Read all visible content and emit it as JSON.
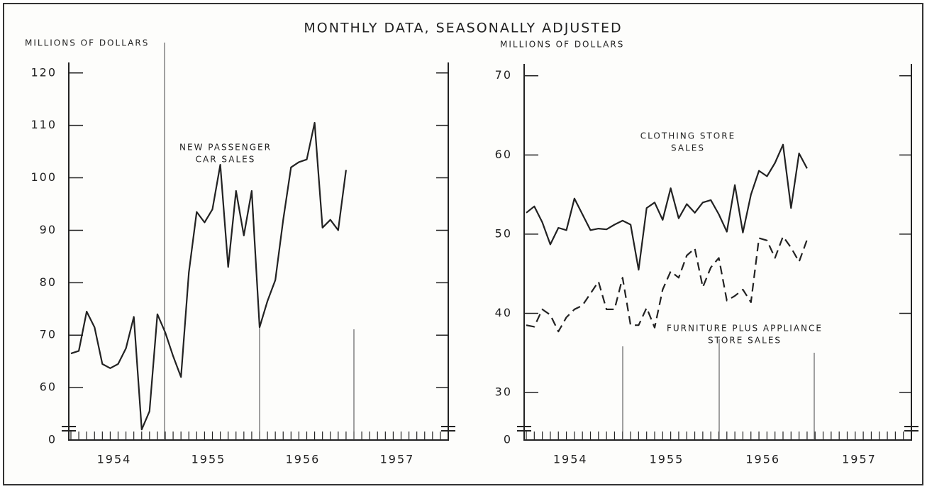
{
  "title": "MONTHLY DATA, SEASONALLY ADJUSTED",
  "chart_data": [
    {
      "type": "line",
      "y_label": "MILLIONS OF DOLLARS",
      "categories": [
        null,
        null,
        null,
        null,
        null,
        null,
        "1954",
        null,
        null,
        null,
        null,
        null,
        null,
        null,
        null,
        null,
        null,
        null,
        "1955",
        null,
        null,
        null,
        null,
        null,
        null,
        null,
        null,
        null,
        null,
        null,
        "1956",
        null,
        null,
        null,
        null,
        null,
        null,
        null,
        null,
        null,
        null,
        null,
        "1957",
        null,
        null,
        null,
        null,
        null
      ],
      "ylim": [
        0,
        122
      ],
      "axis_break": [
        0,
        50
      ],
      "yticks": [
        0,
        60,
        70,
        80,
        90,
        100,
        110,
        120
      ],
      "series": [
        {
          "label": [
            "NEW PASSENGER",
            "CAR SALES"
          ],
          "color": "#222",
          "dash": false,
          "values": [
            66.5,
            67,
            74.5,
            71.5,
            64.5,
            63.7,
            64.5,
            67.5,
            73.5,
            52,
            55.5,
            74,
            70.5,
            66,
            62,
            82,
            93.5,
            91.5,
            94,
            102.5,
            83,
            97.5,
            89,
            97.5,
            71.5,
            76.5,
            80.5,
            92,
            102,
            103,
            103.5,
            110.5,
            90.5,
            92,
            90,
            101.5,
            null,
            null,
            null,
            null,
            null,
            null,
            null,
            null,
            null,
            null,
            null,
            null
          ]
        }
      ]
    },
    {
      "type": "line",
      "y_label": "MILLIONS OF DOLLARS",
      "categories": [
        null,
        null,
        null,
        null,
        null,
        null,
        "1954",
        null,
        null,
        null,
        null,
        null,
        null,
        null,
        null,
        null,
        null,
        null,
        "1955",
        null,
        null,
        null,
        null,
        null,
        null,
        null,
        null,
        null,
        null,
        null,
        "1956",
        null,
        null,
        null,
        null,
        null,
        null,
        null,
        null,
        null,
        null,
        null,
        "1957",
        null,
        null,
        null,
        null,
        null
      ],
      "ylim": [
        0,
        71.5
      ],
      "axis_break": [
        0,
        24
      ],
      "yticks": [
        0,
        30,
        40,
        50,
        60,
        70
      ],
      "series": [
        {
          "label": [
            "CLOTHING STORE",
            "SALES"
          ],
          "color": "#222",
          "dash": false,
          "values": [
            52.7,
            53.5,
            51.5,
            48.7,
            50.8,
            50.5,
            54.5,
            52.5,
            50.5,
            50.7,
            50.6,
            51.2,
            51.7,
            51.2,
            45.5,
            53.3,
            54,
            51.8,
            55.8,
            52,
            53.8,
            52.7,
            54,
            54.3,
            52.5,
            50.3,
            56.2,
            50.2,
            55,
            58,
            57.3,
            59,
            61.3,
            53.3,
            60.2,
            58.3,
            null,
            null,
            null,
            null,
            null,
            null,
            null,
            null,
            null,
            null,
            null,
            null
          ]
        },
        {
          "label": [
            "FURNITURE PLUS APPLIANCE",
            "STORE SALES"
          ],
          "color": "#222",
          "dash": true,
          "values": [
            38.5,
            38.3,
            40.5,
            39.8,
            37.7,
            39.5,
            40.5,
            41,
            42.5,
            44,
            40.5,
            40.5,
            44.5,
            38.5,
            38.5,
            40.7,
            38.2,
            43,
            45.3,
            44.5,
            47.3,
            48.2,
            43.3,
            45.8,
            47,
            41.6,
            42.2,
            43,
            41.4,
            49.5,
            49.2,
            47,
            49.7,
            48.3,
            46.5,
            49.3,
            null,
            null,
            null,
            null,
            null,
            null,
            null,
            null,
            null,
            null,
            null,
            null
          ]
        }
      ]
    }
  ]
}
